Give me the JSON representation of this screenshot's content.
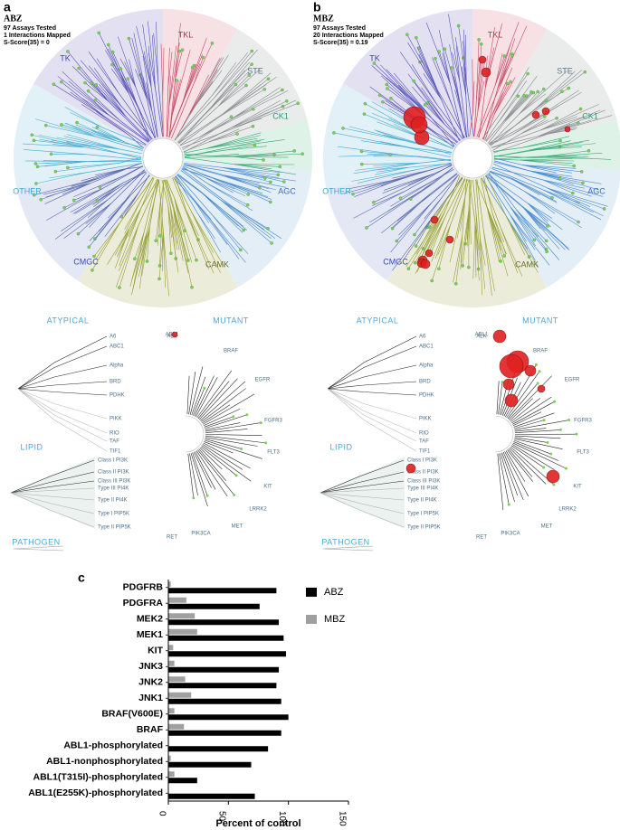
{
  "panel_a": {
    "label": "a",
    "title": "ABZ",
    "stats": [
      "97 Assays Tested",
      "1 Interactions Mapped",
      "S-Score(35) = 0"
    ]
  },
  "panel_b": {
    "label": "b",
    "title": "MBZ",
    "stats": [
      "97 Assays Tested",
      "20 Interactions Mapped",
      "S-Score(35) = 0.19"
    ]
  },
  "tree_labels": {
    "groups": [
      "TK",
      "TKL",
      "STE",
      "CK1",
      "AGC",
      "CAMK",
      "CMGC",
      "OTHER"
    ],
    "atypical": {
      "title": "ATYPICAL",
      "items": [
        "A6",
        "ABC1",
        "Alpha",
        "BRD",
        "PDHK",
        "PIKK",
        "RIO",
        "TAF",
        "TIF1"
      ]
    },
    "alk": "ALK",
    "mutant": {
      "title": "MUTANT",
      "items": [
        "ABL1",
        "BRAF",
        "EGFR",
        "FGFR3",
        "FLT3",
        "KIT",
        "LRRK2",
        "MET",
        "PIK3CA",
        "RET"
      ]
    },
    "lipid": {
      "title": "LIPID",
      "items": [
        "Class I PI3K",
        "Class II PI3K",
        "Class III PI3K",
        "Type III PI4K",
        "Type II PI4K",
        "Type I PIP5K",
        "Type II PIP5K"
      ]
    },
    "pathogen": {
      "title": "PATHOGEN"
    }
  },
  "chart_data": {
    "type": "bar",
    "orientation": "horizontal",
    "panel_label": "c",
    "categories": [
      "PDGFRB",
      "PDGFRA",
      "MEK2",
      "MEK1",
      "KIT",
      "JNK3",
      "JNK2",
      "JNK1",
      "BRAF(V600E)",
      "BRAF",
      "ABL1-phosphorylated",
      "ABL1-nonphosphorylated",
      "ABL1(T315I)-phosphorylated",
      "ABL1(E255K)-phosphorylated"
    ],
    "series": [
      {
        "name": "ABZ",
        "color": "#000000",
        "values": [
          90,
          76,
          92,
          96,
          98,
          92,
          90,
          94,
          100,
          94,
          83,
          69,
          24,
          72
        ]
      },
      {
        "name": "MBZ",
        "color": "#a0a0a0",
        "values": [
          2,
          15,
          22,
          24,
          4,
          5,
          14,
          19,
          5,
          13,
          0,
          2,
          5,
          0
        ]
      }
    ],
    "xlim": [
      0,
      150
    ],
    "xticks": [
      0,
      50,
      100,
      150
    ],
    "x_label": "Percent of control",
    "legend": "upper right"
  }
}
